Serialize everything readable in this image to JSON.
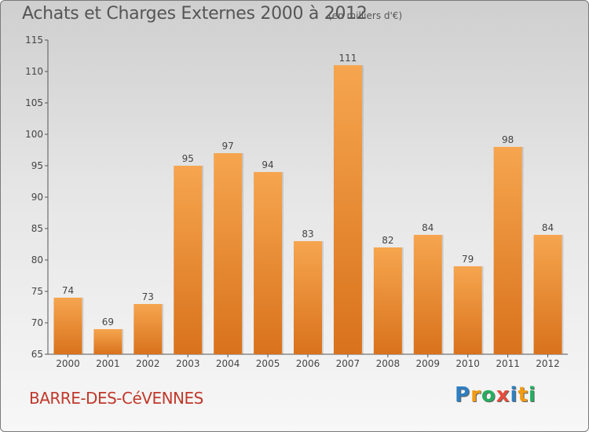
{
  "header": {
    "title": "Achats et Charges Externes 2000 à 2012",
    "subtitle": "(en milliers d'€)"
  },
  "footer": {
    "commune": "BARRE-DES-CéVENNES",
    "brand": "Proxiti",
    "brand_letters": [
      {
        "char": "P",
        "color": "#2e7fc1"
      },
      {
        "char": "r",
        "color": "#f39c12"
      },
      {
        "char": "o",
        "color": "#27ae60"
      },
      {
        "char": "x",
        "color": "#e74c3c"
      },
      {
        "char": "i",
        "color": "#2e7fc1"
      },
      {
        "char": "t",
        "color": "#f39c12"
      },
      {
        "char": "i",
        "color": "#27ae60"
      }
    ]
  },
  "chart_data": {
    "type": "bar",
    "title": "Achats et Charges Externes 2000 à 2012",
    "subtitle": "(en milliers d'€)",
    "categories": [
      "2000",
      "2001",
      "2002",
      "2003",
      "2004",
      "2005",
      "2006",
      "2007",
      "2008",
      "2009",
      "2010",
      "2011",
      "2012"
    ],
    "values": [
      74,
      69,
      73,
      95,
      97,
      94,
      83,
      111,
      82,
      84,
      79,
      98,
      84
    ],
    "ylim": [
      65,
      115
    ],
    "yticks": [
      65,
      70,
      75,
      80,
      85,
      90,
      95,
      100,
      105,
      110,
      115
    ],
    "grid": false,
    "bar_color_top": "#f6a54f",
    "bar_color_bottom": "#d9721c"
  }
}
